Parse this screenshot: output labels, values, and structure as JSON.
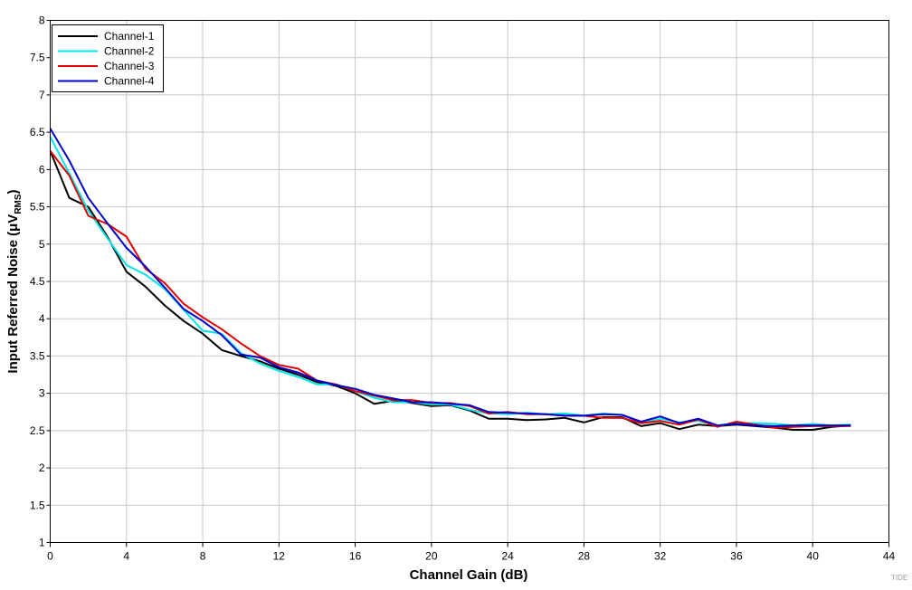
{
  "chart_data": {
    "type": "line",
    "title": "",
    "xlabel": "Channel Gain (dB)",
    "ylabel_parts": {
      "main": "Input Referred Noise (",
      "mu": "μ",
      "v": "V",
      "sub": "RMS",
      "close": ")"
    },
    "xlim": [
      0,
      44
    ],
    "ylim": [
      1,
      8
    ],
    "xticks": [
      0,
      4,
      8,
      12,
      16,
      20,
      24,
      28,
      32,
      36,
      40,
      44
    ],
    "yticks": [
      1,
      1.5,
      2,
      2.5,
      3,
      3.5,
      4,
      4.5,
      5,
      5.5,
      6,
      6.5,
      7,
      7.5,
      8
    ],
    "grid": true,
    "legend_position": "top-left",
    "x": [
      0,
      1,
      2,
      3,
      4,
      5,
      6,
      7,
      8,
      9,
      10,
      11,
      12,
      13,
      14,
      15,
      16,
      17,
      18,
      19,
      20,
      21,
      22,
      23,
      24,
      25,
      26,
      27,
      28,
      29,
      30,
      31,
      32,
      33,
      34,
      35,
      36,
      37,
      38,
      39,
      40,
      41,
      42
    ],
    "series": [
      {
        "name": "Channel-1",
        "color": "#000000",
        "values": [
          6.25,
          5.62,
          5.5,
          5.1,
          4.63,
          4.43,
          4.18,
          3.97,
          3.8,
          3.58,
          3.5,
          3.43,
          3.33,
          3.25,
          3.15,
          3.1,
          3.0,
          2.86,
          2.9,
          2.87,
          2.83,
          2.84,
          2.77,
          2.66,
          2.66,
          2.64,
          2.65,
          2.67,
          2.61,
          2.68,
          2.68,
          2.56,
          2.6,
          2.52,
          2.58,
          2.56,
          2.58,
          2.56,
          2.54,
          2.51,
          2.51,
          2.55,
          2.57
        ]
      },
      {
        "name": "Channel-2",
        "color": "#00e6e6",
        "values": [
          6.44,
          5.95,
          5.45,
          5.08,
          4.72,
          4.59,
          4.4,
          4.12,
          3.84,
          3.8,
          3.54,
          3.4,
          3.3,
          3.22,
          3.12,
          3.12,
          3.03,
          2.94,
          2.88,
          2.88,
          2.85,
          2.85,
          2.78,
          2.73,
          2.72,
          2.74,
          2.72,
          2.73,
          2.7,
          2.73,
          2.71,
          2.61,
          2.66,
          2.61,
          2.63,
          2.57,
          2.6,
          2.6,
          2.59,
          2.57,
          2.59,
          2.57,
          2.58
        ]
      },
      {
        "name": "Channel-3",
        "color": "#e00000",
        "values": [
          6.25,
          5.92,
          5.38,
          5.27,
          5.1,
          4.67,
          4.48,
          4.2,
          4.02,
          3.86,
          3.67,
          3.5,
          3.38,
          3.33,
          3.17,
          3.12,
          3.03,
          2.97,
          2.91,
          2.91,
          2.87,
          2.87,
          2.83,
          2.73,
          2.75,
          2.72,
          2.72,
          2.7,
          2.7,
          2.67,
          2.67,
          2.6,
          2.63,
          2.58,
          2.65,
          2.55,
          2.62,
          2.58,
          2.54,
          2.55,
          2.56,
          2.56,
          2.56
        ]
      },
      {
        "name": "Channel-4",
        "color": "#0000cc",
        "values": [
          6.55,
          6.12,
          5.62,
          5.28,
          4.95,
          4.7,
          4.42,
          4.13,
          3.97,
          3.78,
          3.52,
          3.48,
          3.35,
          3.28,
          3.17,
          3.11,
          3.06,
          2.98,
          2.93,
          2.88,
          2.88,
          2.86,
          2.84,
          2.75,
          2.74,
          2.73,
          2.72,
          2.7,
          2.7,
          2.72,
          2.71,
          2.62,
          2.69,
          2.6,
          2.66,
          2.57,
          2.59,
          2.57,
          2.56,
          2.57,
          2.57,
          2.57,
          2.57
        ]
      }
    ]
  },
  "figure_code": "TIDE"
}
